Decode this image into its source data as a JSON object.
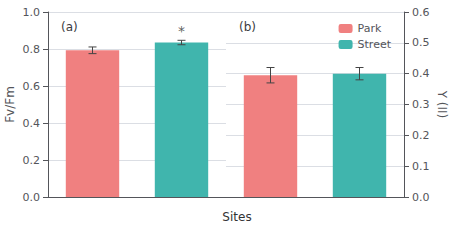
{
  "chart_data": [
    {
      "type": "bar",
      "title": "(a)",
      "xlabel": "Sites",
      "ylabel": "Fv/Fm",
      "categories": [
        null,
        null
      ],
      "series": [
        {
          "name": "Park",
          "color": "#F08080",
          "values": [
            0.793,
            null
          ],
          "errors": [
            0.018,
            null
          ]
        },
        {
          "name": "Street",
          "color": "#40B5AD",
          "values": [
            null,
            0.835
          ],
          "errors": [
            null,
            0.012
          ]
        }
      ],
      "ylim": [
        0.0,
        1.0
      ],
      "yticks": [
        {
          "value": 0.0,
          "label": "0.0"
        },
        0.2,
        0.4,
        0.6,
        0.8,
        {
          "value": 1.0,
          "label": "1.0"
        }
      ],
      "annotations": [
        {
          "text": "*",
          "series": "Street"
        }
      ]
    },
    {
      "type": "bar",
      "title": "(b)",
      "ylabel": "Y (II)",
      "categories": [
        null,
        null
      ],
      "series": [
        {
          "name": "Park",
          "color": "#F08080",
          "values": [
            0.395,
            null
          ],
          "errors": [
            0.025,
            null
          ]
        },
        {
          "name": "Street",
          "color": "#40B5AD",
          "values": [
            null,
            0.4
          ],
          "errors": [
            null,
            0.02
          ]
        }
      ],
      "ylim": [
        0.0,
        0.6
      ],
      "yticks": [
        {
          "value": 0.0,
          "label": "0.0"
        },
        0.1,
        0.2,
        0.3,
        0.4,
        0.5,
        0.6
      ],
      "legend": "upper right"
    }
  ]
}
